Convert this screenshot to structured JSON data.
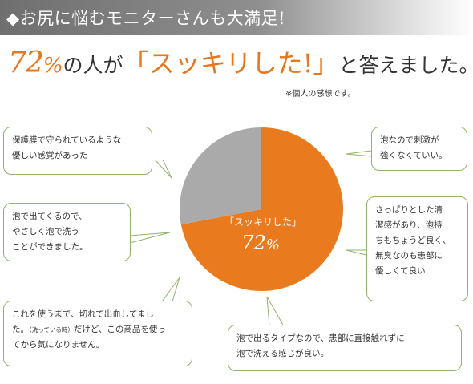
{
  "banner": {
    "text": "◆お尻に悩むモニターさんも大満足!"
  },
  "headline": {
    "percent_number": "72",
    "percent_sign": "%",
    "text_before": "の人が",
    "open_quote": "「",
    "quote_text": "スッキリした!",
    "close_quote": "」",
    "text_after": "と答えました。"
  },
  "note": "※個人の感想です。",
  "chart_data": {
    "type": "pie",
    "slices": [
      {
        "label": "「スッキリした」",
        "value": 72,
        "color": "#ea7a1e"
      },
      {
        "label": "",
        "value": 28,
        "color": "#aaaaaa"
      }
    ],
    "slice_label": "「スッキリした」",
    "slice_value_number": "72",
    "slice_value_sign": "%"
  },
  "bubbles": [
    {
      "lines": [
        "保護膜で守られているような",
        "優しい感覚があった"
      ]
    },
    {
      "lines": [
        "泡なので刺激が",
        "強くなくていい。"
      ]
    },
    {
      "lines": [
        "泡で出てくるので、",
        "やさしく泡で洗う",
        "ことができました。"
      ]
    },
    {
      "lines": [
        "さっぱりとした清",
        "潔感があり、泡持",
        "ちもちょうど良く、",
        "無臭なのも患部に",
        "優しくて良い"
      ]
    },
    {
      "lines_pre": "これを使うまで、切れて出血してまし",
      "line2_pre": "た。",
      "line2_small": "（洗っている時）",
      "line2_post": "だけど、この商品を使っ",
      "line3": "てから気になりません。"
    },
    {
      "lines": [
        "泡で出るタイプなので、患部に直接触れずに",
        "泡で洗える感じが良い。"
      ]
    }
  ],
  "colors": {
    "accent": "#e8761a",
    "bubble_border": "#8fb46a",
    "gray": "#aaaaaa"
  }
}
